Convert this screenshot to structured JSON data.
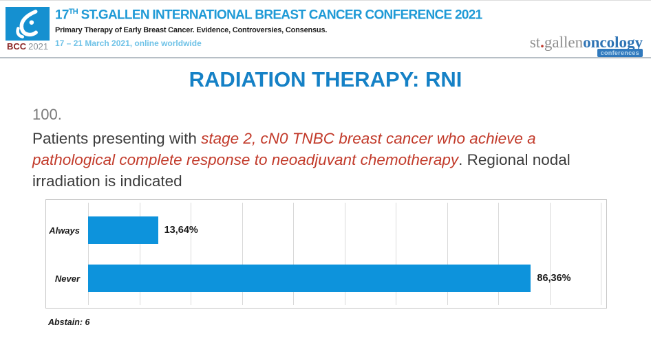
{
  "header": {
    "logo": {
      "bcc": "BCC",
      "year": "2021"
    },
    "title_num": "17",
    "title_sup": "TH",
    "title_rest": " ST.GALLEN INTERNATIONAL BREAST CANCER CONFERENCE 2021",
    "subtitle": "Primary Therapy of Early Breast Cancer. Evidence, Controversies, Consensus.",
    "date": "17 – 21 March 2021, online worldwide",
    "partner": {
      "st": "st",
      "dot": ".",
      "gallen": "gallen",
      "oncology": "oncology",
      "badge": "conferences"
    },
    "colors": {
      "title_blue": "#1f9ad6",
      "date_blue": "#6fc2e7",
      "logo_blue": "#1590d0",
      "bcc_red": "#8a2525",
      "oncology_blue": "#2f74b5"
    }
  },
  "main": {
    "title": "RADIATION THERAPY: RNI",
    "title_color": "#1581c6",
    "question_number": "100.",
    "question": {
      "plain1": "Patients presenting with ",
      "red1": "stage 2, cN0 TNBC breast cancer who achieve a pathological complete response to neoadjuvant chemotherapy",
      "plain2": ". Regional nodal irradiation is indicated",
      "emphasis_color": "#c23a2a"
    },
    "abstain": "Abstain: 6"
  },
  "chart_data": {
    "type": "bar",
    "orientation": "horizontal",
    "title": "",
    "xlabel": "",
    "ylabel": "",
    "categories": [
      "Always",
      "Never"
    ],
    "values": [
      13.64,
      86.36
    ],
    "value_labels": [
      "13,64%",
      "86,36%"
    ],
    "xlim": [
      0,
      100
    ],
    "gridline_step": 10,
    "grid": true,
    "legend": false,
    "bar_color": "#0d93dc",
    "annotation": "Abstain: 6"
  }
}
